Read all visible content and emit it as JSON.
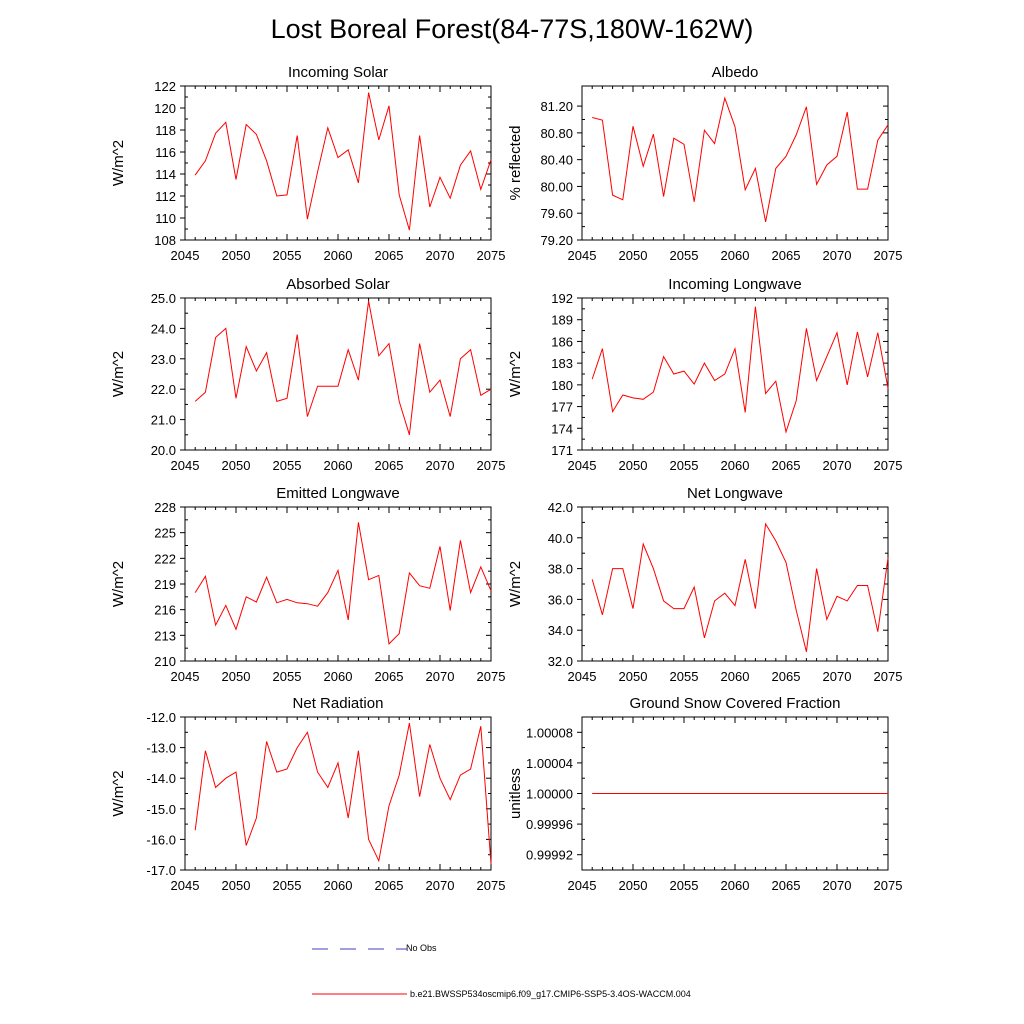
{
  "title": "Lost Boreal Forest(84-77S,180W-162W)",
  "legend": {
    "obs_label": "No Obs",
    "model_label": "b.e21.BWSSP534oscmip6.f09_g17.CMIP6-SSP5-3.4OS-WACCM.004",
    "obs_color": "#3f3fbf",
    "model_color": "#ff0000"
  },
  "chart_data": [
    {
      "type": "line",
      "title": "Incoming Solar",
      "ylabel": "W/m^2",
      "xlim": [
        2045,
        2075
      ],
      "xticks": [
        2045,
        2050,
        2055,
        2060,
        2065,
        2070,
        2075
      ],
      "ylim": [
        108,
        122
      ],
      "yticks": [
        "108",
        "110",
        "112",
        "114",
        "116",
        "118",
        "120",
        "122"
      ],
      "series": [
        {
          "name": "b.e21.BWSSP534oscmip6.f09_g17.CMIP6-SSP5-3.4OS-WACCM.004",
          "x": [
            2046,
            2047,
            2048,
            2049,
            2050,
            2051,
            2052,
            2053,
            2054,
            2055,
            2056,
            2057,
            2058,
            2059,
            2060,
            2061,
            2062,
            2063,
            2064,
            2065,
            2066,
            2067,
            2068,
            2069,
            2070,
            2071,
            2072,
            2073,
            2074,
            2075
          ],
          "values": [
            113.9,
            115.2,
            117.7,
            118.7,
            113.5,
            118.5,
            117.6,
            115.2,
            112.0,
            112.1,
            117.5,
            109.9,
            114.2,
            118.2,
            115.5,
            116.2,
            113.2,
            121.4,
            117.1,
            120.2,
            112.1,
            108.9,
            117.5,
            111.0,
            113.7,
            111.8,
            114.8,
            116.1,
            112.6,
            115.3
          ]
        }
      ]
    },
    {
      "type": "line",
      "title": "Albedo",
      "ylabel": "% reflected",
      "xlim": [
        2045,
        2075
      ],
      "xticks": [
        2045,
        2050,
        2055,
        2060,
        2065,
        2070,
        2075
      ],
      "ylim": [
        79.2,
        81.5
      ],
      "yticks": [
        "79.20",
        "79.60",
        "80.00",
        "80.40",
        "80.80",
        "81.20"
      ],
      "series": [
        {
          "name": "b.e21.BWSSP534oscmip6.f09_g17.CMIP6-SSP5-3.4OS-WACCM.004",
          "x": [
            2046,
            2047,
            2048,
            2049,
            2050,
            2051,
            2052,
            2053,
            2054,
            2055,
            2056,
            2057,
            2058,
            2059,
            2060,
            2061,
            2062,
            2063,
            2064,
            2065,
            2066,
            2067,
            2068,
            2069,
            2070,
            2071,
            2072,
            2073,
            2074,
            2075
          ],
          "values": [
            81.03,
            80.99,
            79.87,
            79.8,
            80.9,
            80.3,
            80.78,
            79.85,
            80.72,
            80.63,
            79.77,
            80.84,
            80.64,
            81.32,
            80.89,
            79.95,
            80.27,
            79.47,
            80.27,
            80.45,
            80.77,
            81.19,
            80.03,
            80.32,
            80.45,
            81.11,
            79.96,
            79.96,
            80.69,
            80.92
          ]
        }
      ]
    },
    {
      "type": "line",
      "title": "Absorbed Solar",
      "ylabel": "W/m^2",
      "xlim": [
        2045,
        2075
      ],
      "xticks": [
        2045,
        2050,
        2055,
        2060,
        2065,
        2070,
        2075
      ],
      "ylim": [
        20.0,
        25.0
      ],
      "yticks": [
        "20.0",
        "21.0",
        "22.0",
        "23.0",
        "24.0",
        "25.0"
      ],
      "series": [
        {
          "name": "b.e21.BWSSP534oscmip6.f09_g17.CMIP6-SSP5-3.4OS-WACCM.004",
          "x": [
            2046,
            2047,
            2048,
            2049,
            2050,
            2051,
            2052,
            2053,
            2054,
            2055,
            2056,
            2057,
            2058,
            2059,
            2060,
            2061,
            2062,
            2063,
            2064,
            2065,
            2066,
            2067,
            2068,
            2069,
            2070,
            2071,
            2072,
            2073,
            2074,
            2075
          ],
          "values": [
            21.6,
            21.9,
            23.7,
            24.0,
            21.7,
            23.4,
            22.6,
            23.2,
            21.6,
            21.7,
            23.8,
            21.1,
            22.1,
            22.1,
            22.1,
            23.3,
            22.3,
            24.9,
            23.1,
            23.5,
            21.6,
            20.5,
            23.5,
            21.9,
            22.3,
            21.1,
            23.0,
            23.3,
            21.8,
            22.0
          ]
        }
      ]
    },
    {
      "type": "line",
      "title": "Incoming Longwave",
      "ylabel": "W/m^2",
      "xlim": [
        2045,
        2075
      ],
      "xticks": [
        2045,
        2050,
        2055,
        2060,
        2065,
        2070,
        2075
      ],
      "ylim": [
        171,
        192
      ],
      "yticks": [
        "171",
        "174",
        "177",
        "180",
        "183",
        "186",
        "189",
        "192"
      ],
      "series": [
        {
          "name": "b.e21.BWSSP534oscmip6.f09_g17.CMIP6-SSP5-3.4OS-WACCM.004",
          "x": [
            2046,
            2047,
            2048,
            2049,
            2050,
            2051,
            2052,
            2053,
            2054,
            2055,
            2056,
            2057,
            2058,
            2059,
            2060,
            2061,
            2062,
            2063,
            2064,
            2065,
            2066,
            2067,
            2068,
            2069,
            2070,
            2071,
            2072,
            2073,
            2074,
            2075
          ],
          "values": [
            180.8,
            185.0,
            176.3,
            178.6,
            178.2,
            178.0,
            179.0,
            183.9,
            181.5,
            181.9,
            180.1,
            183.0,
            180.6,
            181.5,
            185.0,
            176.2,
            190.8,
            178.8,
            180.5,
            173.5,
            177.8,
            187.8,
            180.6,
            183.9,
            187.2,
            180.0,
            187.3,
            181.1,
            187.2,
            179.5
          ]
        }
      ]
    },
    {
      "type": "line",
      "title": "Emitted Longwave",
      "ylabel": "W/m^2",
      "xlim": [
        2045,
        2075
      ],
      "xticks": [
        2045,
        2050,
        2055,
        2060,
        2065,
        2070,
        2075
      ],
      "ylim": [
        210,
        228
      ],
      "yticks": [
        "210",
        "213",
        "216",
        "219",
        "222",
        "225",
        "228"
      ],
      "series": [
        {
          "name": "b.e21.BWSSP534oscmip6.f09_g17.CMIP6-SSP5-3.4OS-WACCM.004",
          "x": [
            2046,
            2047,
            2048,
            2049,
            2050,
            2051,
            2052,
            2053,
            2054,
            2055,
            2056,
            2057,
            2058,
            2059,
            2060,
            2061,
            2062,
            2063,
            2064,
            2065,
            2066,
            2067,
            2068,
            2069,
            2070,
            2071,
            2072,
            2073,
            2074,
            2075
          ],
          "values": [
            218.0,
            219.9,
            214.2,
            216.5,
            213.7,
            217.5,
            216.9,
            219.8,
            216.8,
            217.2,
            216.8,
            216.7,
            216.4,
            218.0,
            220.6,
            214.8,
            226.2,
            219.5,
            220.0,
            212.0,
            213.2,
            220.3,
            218.8,
            218.5,
            223.4,
            215.9,
            224.1,
            218.0,
            221.0,
            218.2
          ]
        }
      ]
    },
    {
      "type": "line",
      "title": "Net Longwave",
      "ylabel": "W/m^2",
      "xlim": [
        2045,
        2075
      ],
      "xticks": [
        2045,
        2050,
        2055,
        2060,
        2065,
        2070,
        2075
      ],
      "ylim": [
        32.0,
        42.0
      ],
      "yticks": [
        "32.0",
        "34.0",
        "36.0",
        "38.0",
        "40.0",
        "42.0"
      ],
      "series": [
        {
          "name": "b.e21.BWSSP534oscmip6.f09_g17.CMIP6-SSP5-3.4OS-WACCM.004",
          "x": [
            2046,
            2047,
            2048,
            2049,
            2050,
            2051,
            2052,
            2053,
            2054,
            2055,
            2056,
            2057,
            2058,
            2059,
            2060,
            2061,
            2062,
            2063,
            2064,
            2065,
            2066,
            2067,
            2068,
            2069,
            2070,
            2071,
            2072,
            2073,
            2074,
            2075
          ],
          "values": [
            37.3,
            35.0,
            38.0,
            38.0,
            35.4,
            39.6,
            38.0,
            35.9,
            35.4,
            35.4,
            36.8,
            33.5,
            35.9,
            36.4,
            35.6,
            38.6,
            35.4,
            40.9,
            39.8,
            38.4,
            35.3,
            32.6,
            38.0,
            34.7,
            36.2,
            35.9,
            36.9,
            36.9,
            33.9,
            38.7
          ]
        }
      ]
    },
    {
      "type": "line",
      "title": "Net Radiation",
      "ylabel": "W/m^2",
      "xlim": [
        2045,
        2075
      ],
      "xticks": [
        2045,
        2050,
        2055,
        2060,
        2065,
        2070,
        2075
      ],
      "ylim": [
        -17.0,
        -12.0
      ],
      "yticks": [
        "-17.0",
        "-16.0",
        "-15.0",
        "-14.0",
        "-13.0",
        "-12.0"
      ],
      "series": [
        {
          "name": "b.e21.BWSSP534oscmip6.f09_g17.CMIP6-SSP5-3.4OS-WACCM.004",
          "x": [
            2046,
            2047,
            2048,
            2049,
            2050,
            2051,
            2052,
            2053,
            2054,
            2055,
            2056,
            2057,
            2058,
            2059,
            2060,
            2061,
            2062,
            2063,
            2064,
            2065,
            2066,
            2067,
            2068,
            2069,
            2070,
            2071,
            2072,
            2073,
            2074,
            2075
          ],
          "values": [
            -15.7,
            -13.1,
            -14.3,
            -14.0,
            -13.8,
            -16.2,
            -15.3,
            -12.8,
            -13.8,
            -13.7,
            -13.0,
            -12.5,
            -13.8,
            -14.3,
            -13.5,
            -15.3,
            -13.1,
            -16.0,
            -16.7,
            -14.9,
            -13.9,
            -12.2,
            -14.6,
            -12.9,
            -14.0,
            -14.7,
            -13.9,
            -13.7,
            -12.3,
            -16.8
          ]
        }
      ]
    },
    {
      "type": "line",
      "title": "Ground Snow Covered Fraction",
      "ylabel": "unitless",
      "xlim": [
        2045,
        2075
      ],
      "xticks": [
        2045,
        2050,
        2055,
        2060,
        2065,
        2070,
        2075
      ],
      "ylim": [
        0.9999,
        1.0001
      ],
      "yticks": [
        "0.99992",
        "0.99996",
        "1.00000",
        "1.00004",
        "1.00008"
      ],
      "series": [
        {
          "name": "b.e21.BWSSP534oscmip6.f09_g17.CMIP6-SSP5-3.4OS-WACCM.004",
          "x": [
            2046,
            2047,
            2048,
            2049,
            2050,
            2051,
            2052,
            2053,
            2054,
            2055,
            2056,
            2057,
            2058,
            2059,
            2060,
            2061,
            2062,
            2063,
            2064,
            2065,
            2066,
            2067,
            2068,
            2069,
            2070,
            2071,
            2072,
            2073,
            2074,
            2075
          ],
          "values": [
            1,
            1,
            1,
            1,
            1,
            1,
            1,
            1,
            1,
            1,
            1,
            1,
            1,
            1,
            1,
            1,
            1,
            1,
            1,
            1,
            1,
            1,
            1,
            1,
            1,
            1,
            1,
            1,
            1,
            1
          ]
        }
      ]
    }
  ]
}
